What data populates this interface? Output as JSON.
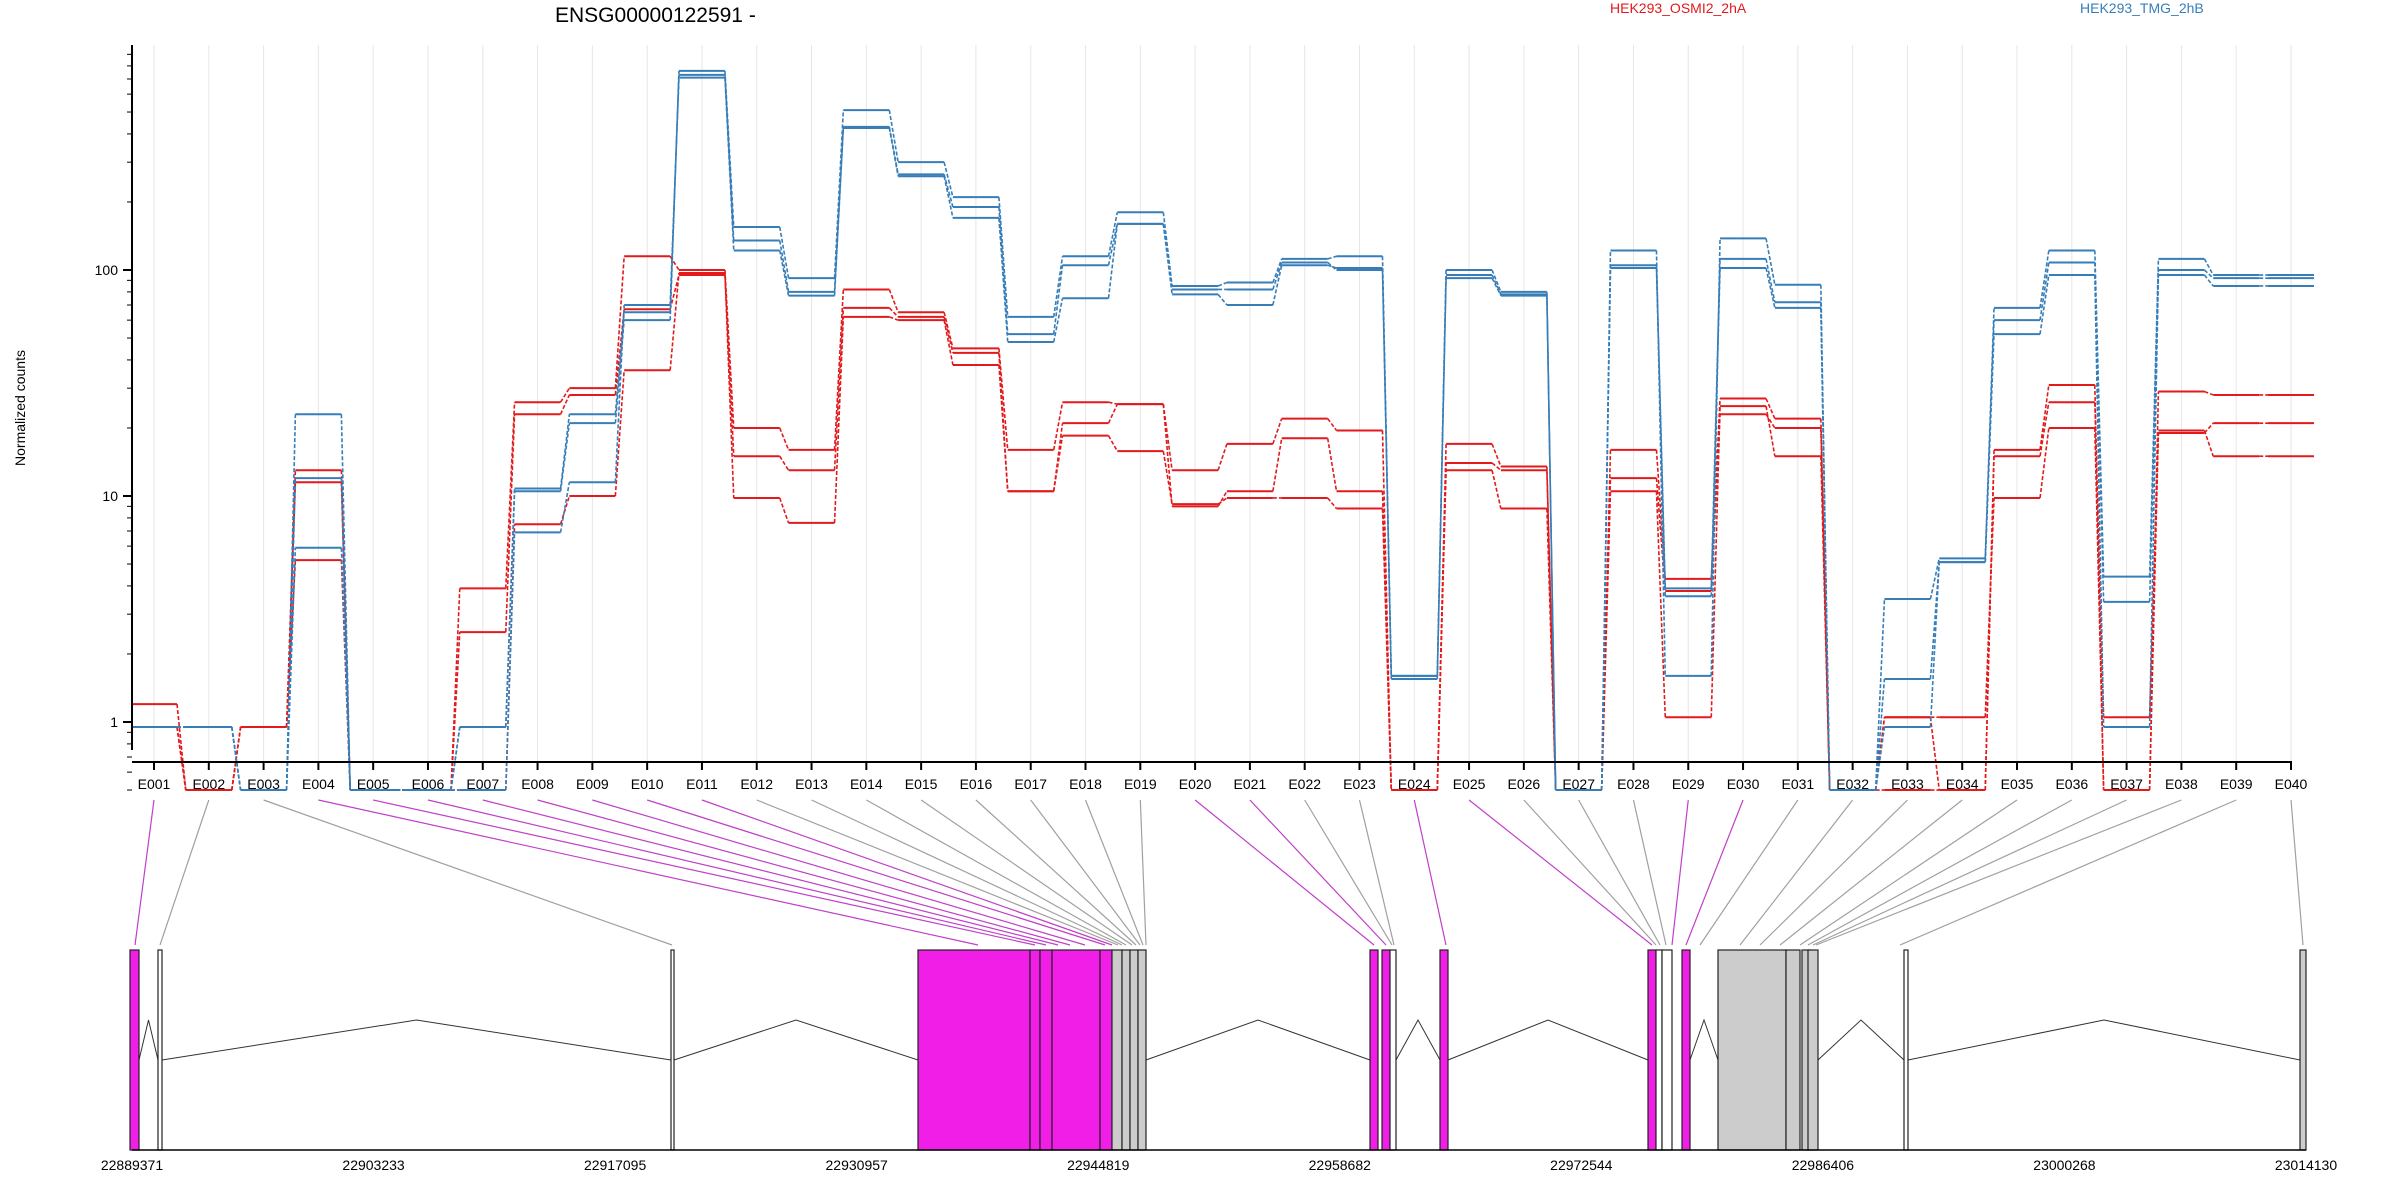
{
  "chart_data": {
    "type": "line",
    "title": "ENSG00000122591 -",
    "ylabel": "Normalized counts",
    "yscale": "log",
    "ylim": [
      0.5,
      900
    ],
    "yticks": [
      1,
      10,
      100
    ],
    "ytick_labels": [
      "1",
      "10",
      "100"
    ],
    "grid": "vertical",
    "legend": {
      "position": "top",
      "entries": [
        "HEK293_OSMI2_2hA",
        "HEK293_TMG_2hB"
      ]
    },
    "categories": [
      "E001",
      "E002",
      "E003",
      "E004",
      "E005",
      "E006",
      "E007",
      "E008",
      "E009",
      "E010",
      "E011",
      "E012",
      "E013",
      "E014",
      "E015",
      "E016",
      "E017",
      "E018",
      "E019",
      "E020",
      "E021",
      "E022",
      "E023",
      "E024",
      "E025",
      "E026",
      "E027",
      "E028",
      "E029",
      "E030",
      "E031",
      "E032",
      "E033",
      "E034",
      "E035",
      "E036",
      "E037",
      "E038",
      "E039",
      "E040"
    ],
    "series": [
      {
        "name": "HEK293_OSMI2_2hA",
        "color": "#e31a1c",
        "values": [
          1.2,
          0.5,
          0.95,
          11.5,
          0.5,
          0.5,
          2.5,
          23,
          28,
          67,
          95,
          15,
          13,
          68,
          62,
          43,
          10.5,
          21,
          25.5,
          9,
          10.5,
          18,
          10.5,
          0.5,
          14,
          13,
          0.5,
          12,
          3.8,
          23,
          20,
          0.5,
          1.05,
          0.5,
          15,
          26,
          1.05,
          19,
          21,
          21
        ]
      },
      {
        "name": "HEK293_OSMI2_2hA",
        "color": "#e31a1c",
        "values": [
          0.95,
          0.5,
          0.95,
          5.2,
          0.5,
          0.5,
          3.9,
          26,
          30,
          115,
          100,
          20,
          16,
          82,
          65,
          45,
          16,
          26,
          25.5,
          13,
          17,
          22,
          19.5,
          0.5,
          17,
          13.5,
          0.5,
          16,
          4.3,
          27,
          22,
          0.5,
          0.5,
          0.5,
          16,
          31,
          0.5,
          29,
          28,
          28
        ]
      },
      {
        "name": "HEK293_OSMI2_2hA",
        "color": "#e31a1c",
        "values": [
          0.95,
          0.5,
          0.95,
          13,
          0.5,
          0.5,
          0.5,
          7.5,
          10,
          36,
          97,
          9.8,
          7.6,
          62,
          60,
          38,
          10.5,
          18.5,
          15.8,
          9.2,
          9.8,
          9.8,
          8.8,
          0.5,
          13,
          8.8,
          0.5,
          10.5,
          1.05,
          25,
          15,
          0.5,
          1.05,
          1.05,
          9.8,
          20,
          0.5,
          19.5,
          15,
          15
        ]
      },
      {
        "name": "HEK293_TMG_2hB",
        "color": "#377eb8",
        "values": [
          0.95,
          0.95,
          0.5,
          23,
          0.5,
          0.5,
          0.95,
          10.5,
          21,
          60,
          760,
          155,
          92,
          510,
          300,
          210,
          62,
          115,
          180,
          85,
          88,
          112,
          115,
          1.6,
          100,
          80,
          0.5,
          122,
          1.6,
          138,
          86,
          0.5,
          3.5,
          5.3,
          68,
          122,
          4.4,
          112,
          95,
          95
        ]
      },
      {
        "name": "HEK293_TMG_2hB",
        "color": "#377eb8",
        "values": [
          0.95,
          0.95,
          0.5,
          12,
          0.5,
          0.5,
          0.95,
          10.8,
          23,
          65,
          730,
          135,
          80,
          430,
          265,
          190,
          52,
          105,
          160,
          82,
          82,
          108,
          100,
          1.6,
          95,
          78,
          0.5,
          105,
          3.9,
          112,
          72,
          0.5,
          0.95,
          5.1,
          60,
          108,
          3.4,
          100,
          92,
          92
        ]
      },
      {
        "name": "HEK293_TMG_2hB",
        "color": "#377eb8",
        "values": [
          0.95,
          0.95,
          0.5,
          5.9,
          0.5,
          0.5,
          0.5,
          6.9,
          11.5,
          70,
          710,
          122,
          77,
          425,
          260,
          170,
          48,
          75,
          160,
          78,
          70,
          105,
          102,
          1.55,
          92,
          77,
          0.5,
          102,
          3.6,
          102,
          68,
          0.5,
          1.55,
          5.1,
          52,
          95,
          0.95,
          95,
          85,
          85
        ]
      }
    ],
    "genome_axis": {
      "tick_labels": [
        "22889371",
        "22903233",
        "22917095",
        "22930957",
        "22944819",
        "22958682",
        "22972544",
        "22986406",
        "23000268",
        "23014130"
      ]
    }
  }
}
